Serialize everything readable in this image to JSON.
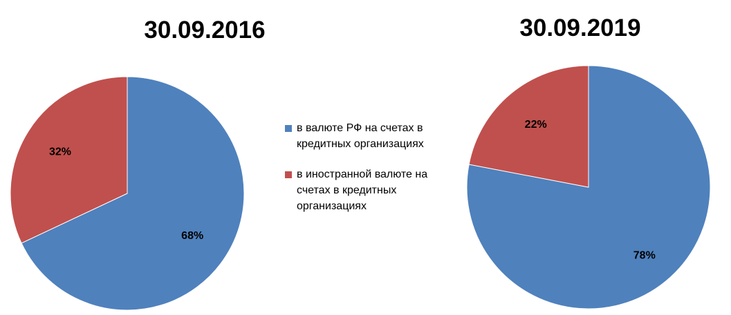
{
  "colors": {
    "rub": "#4F81BD",
    "fx": "#C0504D",
    "stroke": "#ffffff"
  },
  "legend": [
    {
      "label": "в валюте РФ на счетах в кредитных организациях",
      "color": "#4F81BD"
    },
    {
      "label": "в иностранной валюте на счетах в кредитных организациях",
      "color": "#C0504D"
    }
  ],
  "chart_data": [
    {
      "type": "pie",
      "title": "30.09.2016",
      "categories": [
        "в валюте РФ на счетах в кредитных организациях",
        "в иностранной валюте на счетах в кредитных организациях"
      ],
      "values": [
        68,
        32
      ],
      "labels": [
        "68%",
        "32%"
      ],
      "colors": [
        "#4F81BD",
        "#C0504D"
      ],
      "start_angle_deg": 0,
      "direction": "clockwise",
      "legend_position": "center"
    },
    {
      "type": "pie",
      "title": "30.09.2019",
      "categories": [
        "в валюте РФ на счетах в кредитных организациях",
        "в иностранной валюте на счетах в кредитных организациях"
      ],
      "values": [
        78,
        22
      ],
      "labels": [
        "78%",
        "22%"
      ],
      "colors": [
        "#4F81BD",
        "#C0504D"
      ],
      "start_angle_deg": 0,
      "direction": "clockwise",
      "legend_position": "center"
    }
  ]
}
